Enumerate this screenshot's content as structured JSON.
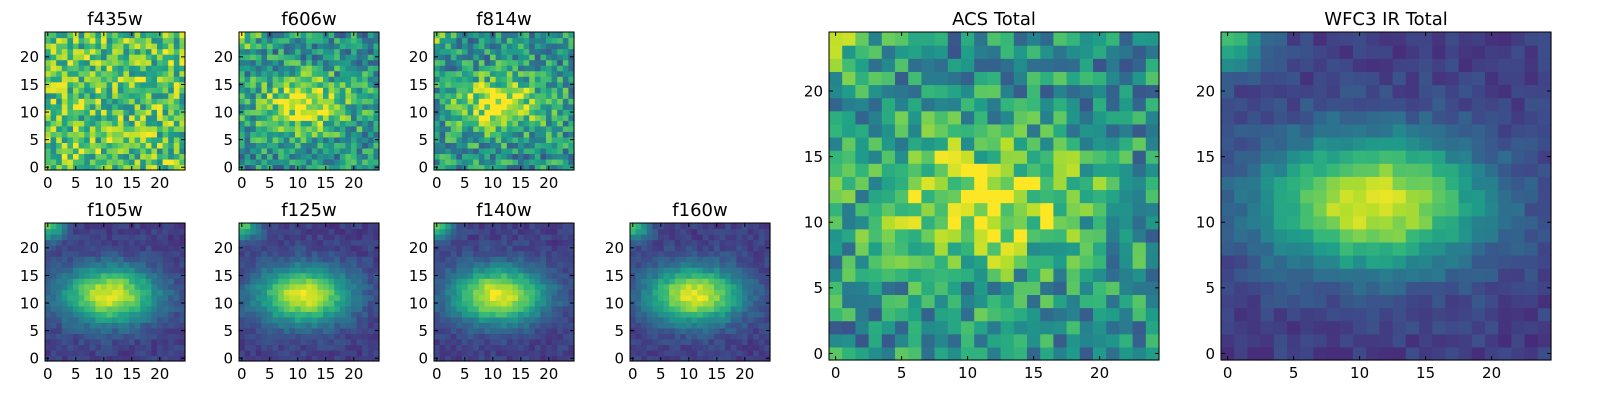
{
  "chart_data": [
    {
      "type": "heatmap",
      "title": "f435w",
      "colormap": "viridis",
      "grid": false,
      "pattern": "noise",
      "xlim": [
        0,
        24
      ],
      "ylim": [
        0,
        24
      ],
      "xticks": [
        0,
        5,
        10,
        15,
        20
      ],
      "yticks": [
        0,
        5,
        10,
        15,
        20
      ],
      "grid_size": [
        25,
        25
      ]
    },
    {
      "type": "heatmap",
      "title": "f606w",
      "colormap": "viridis",
      "grid": false,
      "pattern": "noisy-blob",
      "xlim": [
        0,
        24
      ],
      "ylim": [
        0,
        24
      ],
      "xticks": [
        0,
        5,
        10,
        15,
        20
      ],
      "yticks": [
        0,
        5,
        10,
        15,
        20
      ],
      "grid_size": [
        25,
        25
      ]
    },
    {
      "type": "heatmap",
      "title": "f814w",
      "colormap": "viridis",
      "grid": false,
      "pattern": "noisy-blob",
      "xlim": [
        0,
        24
      ],
      "ylim": [
        0,
        24
      ],
      "xticks": [
        0,
        5,
        10,
        15,
        20
      ],
      "yticks": [
        0,
        5,
        10,
        15,
        20
      ],
      "grid_size": [
        25,
        25
      ]
    },
    {
      "type": "heatmap",
      "title": "f105w",
      "colormap": "viridis",
      "grid": false,
      "pattern": "blob",
      "xlim": [
        0,
        24
      ],
      "ylim": [
        0,
        24
      ],
      "xticks": [
        0,
        5,
        10,
        15,
        20
      ],
      "yticks": [
        0,
        5,
        10,
        15,
        20
      ],
      "grid_size": [
        25,
        25
      ]
    },
    {
      "type": "heatmap",
      "title": "f125w",
      "colormap": "viridis",
      "grid": false,
      "pattern": "blob",
      "xlim": [
        0,
        24
      ],
      "ylim": [
        0,
        24
      ],
      "xticks": [
        0,
        5,
        10,
        15,
        20
      ],
      "yticks": [
        0,
        5,
        10,
        15,
        20
      ],
      "grid_size": [
        25,
        25
      ]
    },
    {
      "type": "heatmap",
      "title": "f140w",
      "colormap": "viridis",
      "grid": false,
      "pattern": "blob",
      "xlim": [
        0,
        24
      ],
      "ylim": [
        0,
        24
      ],
      "xticks": [
        0,
        5,
        10,
        15,
        20
      ],
      "yticks": [
        0,
        5,
        10,
        15,
        20
      ],
      "grid_size": [
        25,
        25
      ]
    },
    {
      "type": "heatmap",
      "title": "f160w",
      "colormap": "viridis",
      "grid": false,
      "pattern": "blob",
      "xlim": [
        0,
        24
      ],
      "ylim": [
        0,
        24
      ],
      "xticks": [
        0,
        5,
        10,
        15,
        20
      ],
      "yticks": [
        0,
        5,
        10,
        15,
        20
      ],
      "grid_size": [
        25,
        25
      ]
    },
    {
      "type": "heatmap",
      "title": "ACS Total",
      "colormap": "viridis",
      "grid": false,
      "pattern": "noisy-blob",
      "xlim": [
        0,
        24
      ],
      "ylim": [
        0,
        24
      ],
      "xticks": [
        0,
        5,
        10,
        15,
        20
      ],
      "yticks": [
        0,
        5,
        10,
        15,
        20
      ],
      "grid_size": [
        25,
        25
      ]
    },
    {
      "type": "heatmap",
      "title": "WFC3 IR Total",
      "colormap": "viridis",
      "grid": false,
      "pattern": "blob",
      "xlim": [
        0,
        24
      ],
      "ylim": [
        0,
        24
      ],
      "xticks": [
        0,
        5,
        10,
        15,
        20
      ],
      "yticks": [
        0,
        5,
        10,
        15,
        20
      ],
      "grid_size": [
        25,
        25
      ]
    }
  ]
}
